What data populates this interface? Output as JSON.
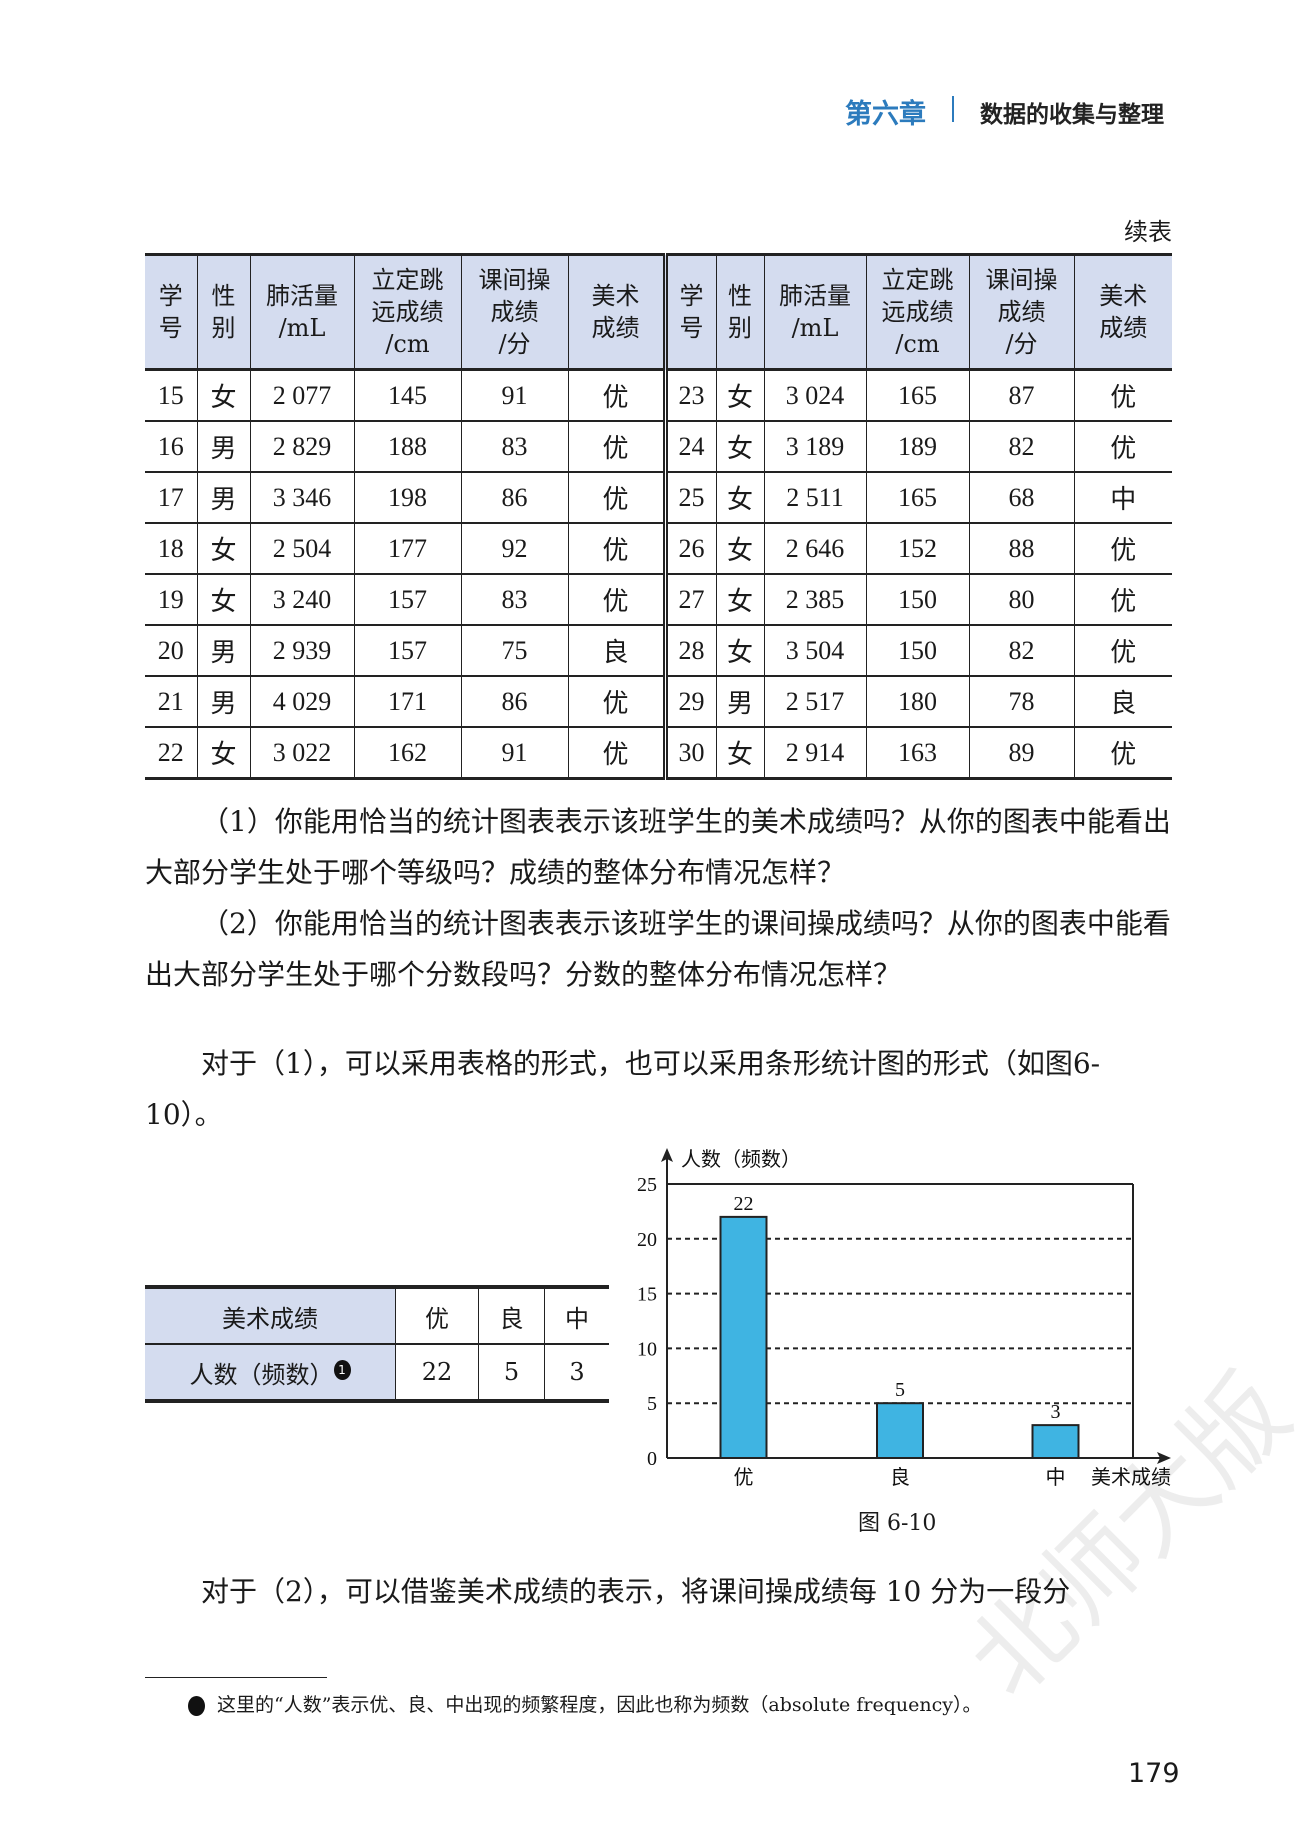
{
  "header": {
    "chapter": "第六章",
    "title": "数据的收集与整理"
  },
  "table": {
    "caption": "续表",
    "headers": [
      "学号",
      "性别",
      "肺活量/mL",
      "立定跳远成绩/cm",
      "课间操成绩/分",
      "美术成绩"
    ],
    "header_lines": [
      [
        "学",
        "号"
      ],
      [
        "性",
        "别"
      ],
      [
        "肺活量",
        "/mL"
      ],
      [
        "立定跳",
        "远成绩",
        "/cm"
      ],
      [
        "课间操",
        "成绩",
        "/分"
      ],
      [
        "美术",
        "成绩"
      ]
    ],
    "left_rows": [
      [
        "15",
        "女",
        "2 077",
        "145",
        "91",
        "优"
      ],
      [
        "16",
        "男",
        "2 829",
        "188",
        "83",
        "优"
      ],
      [
        "17",
        "男",
        "3 346",
        "198",
        "86",
        "优"
      ],
      [
        "18",
        "女",
        "2 504",
        "177",
        "92",
        "优"
      ],
      [
        "19",
        "女",
        "3 240",
        "157",
        "83",
        "优"
      ],
      [
        "20",
        "男",
        "2 939",
        "157",
        "75",
        "良"
      ],
      [
        "21",
        "男",
        "4 029",
        "171",
        "86",
        "优"
      ],
      [
        "22",
        "女",
        "3 022",
        "162",
        "91",
        "优"
      ]
    ],
    "right_rows": [
      [
        "23",
        "女",
        "3 024",
        "165",
        "87",
        "优"
      ],
      [
        "24",
        "女",
        "3 189",
        "189",
        "82",
        "优"
      ],
      [
        "25",
        "女",
        "2 511",
        "165",
        "68",
        "中"
      ],
      [
        "26",
        "女",
        "2 646",
        "152",
        "88",
        "优"
      ],
      [
        "27",
        "女",
        "2 385",
        "150",
        "80",
        "优"
      ],
      [
        "28",
        "女",
        "3 504",
        "150",
        "82",
        "优"
      ],
      [
        "29",
        "男",
        "2 517",
        "180",
        "78",
        "良"
      ],
      [
        "30",
        "女",
        "2 914",
        "163",
        "89",
        "优"
      ]
    ]
  },
  "questions": [
    "（1）你能用恰当的统计图表表示该班学生的美术成绩吗？从你的图表中能看出大部分学生处于哪个等级吗？成绩的整体分布情况怎样？",
    "（2）你能用恰当的统计图表表示该班学生的课间操成绩吗？从你的图表中能看出大部分学生处于哪个分数段吗？分数的整体分布情况怎样？"
  ],
  "answer1": "对于（1），可以采用表格的形式，也可以采用条形统计图的形式（如图6-10）。",
  "freq_table": {
    "row1_label": "美术成绩",
    "row2_label": "人数（频数）",
    "note_mark": "1",
    "grades": [
      "优",
      "良",
      "中"
    ],
    "counts": [
      "22",
      "5",
      "3"
    ]
  },
  "chart_data": {
    "type": "bar",
    "categories": [
      "优",
      "良",
      "中"
    ],
    "values": [
      22,
      5,
      3
    ],
    "data_labels": [
      "22",
      "5",
      "3"
    ],
    "xlabel": "美术成绩",
    "ylabel": "人数（频数）",
    "ylim": [
      0,
      25
    ],
    "yticks": [
      "0",
      "5",
      "10",
      "15",
      "20",
      "25"
    ],
    "grid": "dashed horizontal",
    "bar_color": "#3fb4e2",
    "caption": "图 6-10"
  },
  "answer2": "对于（2），可以借鉴美术成绩的表示，将课间操成绩每 10 分为一段分",
  "footnote": "这里的“人数”表示优、良、中出现的频繁程度，因此也称为频数（absolute frequency）。",
  "page_number": "179",
  "watermark": "北师大版",
  "colors": {
    "chapter": "#2c7bbd",
    "table_header": "#d4dcef",
    "bar": "#3fb4e2"
  }
}
